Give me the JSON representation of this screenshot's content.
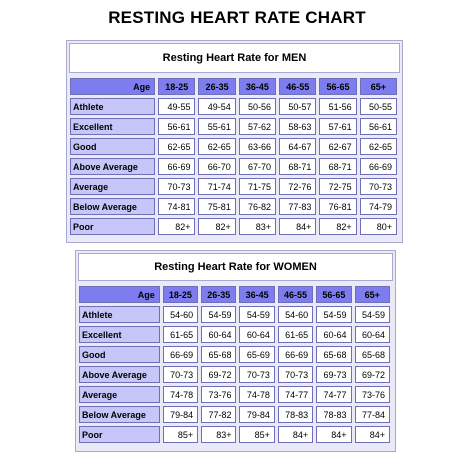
{
  "page_title": "RESTING HEART RATE CHART",
  "chart_data": [
    {
      "type": "table",
      "title": "Resting Heart Rate for MEN",
      "corner_label": "Age",
      "columns": [
        "18-25",
        "26-35",
        "36-45",
        "46-55",
        "56-65",
        "65+"
      ],
      "rows": [
        {
          "label": "Athlete",
          "values": [
            "49-55",
            "49-54",
            "50-56",
            "50-57",
            "51-56",
            "50-55"
          ]
        },
        {
          "label": "Excellent",
          "values": [
            "56-61",
            "55-61",
            "57-62",
            "58-63",
            "57-61",
            "56-61"
          ]
        },
        {
          "label": "Good",
          "values": [
            "62-65",
            "62-65",
            "63-66",
            "64-67",
            "62-67",
            "62-65"
          ]
        },
        {
          "label": "Above Average",
          "values": [
            "66-69",
            "66-70",
            "67-70",
            "68-71",
            "68-71",
            "66-69"
          ]
        },
        {
          "label": "Average",
          "values": [
            "70-73",
            "71-74",
            "71-75",
            "72-76",
            "72-75",
            "70-73"
          ]
        },
        {
          "label": "Below Average",
          "values": [
            "74-81",
            "75-81",
            "76-82",
            "77-83",
            "76-81",
            "74-79"
          ]
        },
        {
          "label": "Poor",
          "values": [
            "82+",
            "82+",
            "83+",
            "84+",
            "82+",
            "80+"
          ]
        }
      ]
    },
    {
      "type": "table",
      "title": "Resting Heart Rate for WOMEN",
      "corner_label": "Age",
      "columns": [
        "18-25",
        "26-35",
        "36-45",
        "46-55",
        "56-65",
        "65+"
      ],
      "rows": [
        {
          "label": "Athlete",
          "values": [
            "54-60",
            "54-59",
            "54-59",
            "54-60",
            "54-59",
            "54-59"
          ]
        },
        {
          "label": "Excellent",
          "values": [
            "61-65",
            "60-64",
            "60-64",
            "61-65",
            "60-64",
            "60-64"
          ]
        },
        {
          "label": "Good",
          "values": [
            "66-69",
            "65-68",
            "65-69",
            "66-69",
            "65-68",
            "65-68"
          ]
        },
        {
          "label": "Above Average",
          "values": [
            "70-73",
            "69-72",
            "70-73",
            "70-73",
            "69-73",
            "69-72"
          ]
        },
        {
          "label": "Average",
          "values": [
            "74-78",
            "73-76",
            "74-78",
            "74-77",
            "74-77",
            "73-76"
          ]
        },
        {
          "label": "Below Average",
          "values": [
            "79-84",
            "77-82",
            "79-84",
            "78-83",
            "78-83",
            "77-84"
          ]
        },
        {
          "label": "Poor",
          "values": [
            "85+",
            "83+",
            "85+",
            "84+",
            "84+",
            "84+"
          ]
        }
      ]
    }
  ],
  "colors": {
    "panel_bg": "#e9e9f7",
    "header_row_bg": "#7d7df0",
    "label_cell_bg": "#c6c6f8",
    "value_cell_bg": "#ffffff",
    "cell_border": "#6f6fb8"
  }
}
